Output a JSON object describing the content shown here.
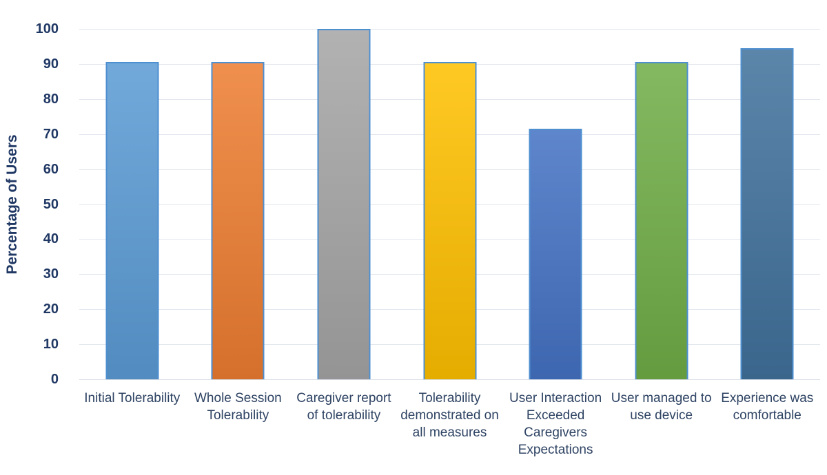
{
  "chart_data": {
    "type": "bar",
    "title": "",
    "xlabel": "",
    "ylabel": "Percentage of Users",
    "ylim": [
      0,
      100
    ],
    "ytick_step": 10,
    "ytick_labels": [
      "0",
      "10",
      "20",
      "30",
      "40",
      "50",
      "60",
      "70",
      "80",
      "90",
      "100"
    ],
    "grid": true,
    "legend": "none",
    "categories": [
      "Initial Tolerability",
      "Whole Session Tolerability",
      "Caregiver report of tolerability",
      "Tolerability demonstrated on all measures",
      "User Interaction Exceeded Caregivers Expectations",
      "User managed to use device",
      "Experience was comfortable"
    ],
    "values": [
      90.5,
      90.5,
      100,
      90.5,
      71.5,
      90.5,
      94.5
    ],
    "bar_colors": [
      "#5B9BD5",
      "#ED7D31",
      "#A5A5A5",
      "#FFC000",
      "#4472C4",
      "#70AD47",
      "#41719C"
    ],
    "bar_border_color": "#4E8FD0",
    "gridline_color": "#E2E7EE",
    "axis_line_color": "#D8DEE6",
    "tick_label_color": "#203864",
    "axis_title_color": "#203864",
    "category_label_color": "#2E4363"
  }
}
